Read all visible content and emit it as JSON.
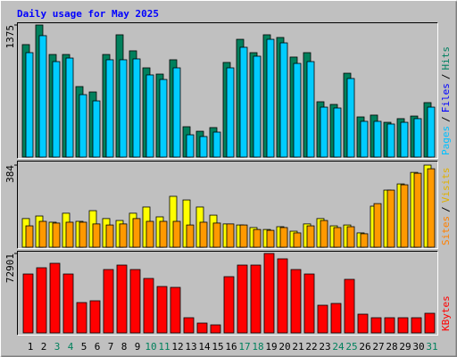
{
  "title": "Daily usage for May 2025",
  "legend_separator": "/",
  "chart_data": [
    {
      "type": "bar",
      "ylim": [
        0,
        1375
      ],
      "yticks": [
        1375
      ],
      "legend": [
        {
          "name": "Pages",
          "color": "#00c0ff"
        },
        {
          "name": "Files",
          "color": "#0000ff"
        },
        {
          "name": "Hits",
          "color": "#008060"
        }
      ],
      "series": [
        {
          "color": "#00805c",
          "values": [
            1171,
            1375,
            1068,
            1068,
            734,
            678,
            1068,
            1273,
            1106,
            929,
            864,
            1013,
            316,
            269,
            307,
            985,
            1226,
            1087,
            1273,
            1245,
            1041,
            1087,
            576,
            548,
            873,
            418,
            437,
            362,
            400,
            427,
            567
          ]
        },
        {
          "color": "#00ccff",
          "values": [
            1087,
            1264,
            994,
            1031,
            650,
            585,
            1013,
            1013,
            1022,
            855,
            808,
            929,
            232,
            214,
            260,
            929,
            1143,
            1050,
            1226,
            1189,
            975,
            994,
            520,
            511,
            818,
            372,
            372,
            344,
            362,
            400,
            520
          ]
        }
      ]
    },
    {
      "type": "bar",
      "ylim": [
        0,
        384
      ],
      "yticks": [
        384
      ],
      "legend": [
        {
          "name": "Sites",
          "color": "#ff8000"
        },
        {
          "name": "Visits",
          "color": "#e0b000"
        }
      ],
      "series": [
        {
          "color": "#ffff00",
          "values": [
            134,
            146,
            117,
            159,
            121,
            171,
            134,
            125,
            159,
            188,
            142,
            238,
            221,
            188,
            150,
            109,
            104,
            92,
            83,
            96,
            75,
            109,
            134,
            100,
            104,
            67,
            192,
            267,
            296,
            350,
            384
          ]
        },
        {
          "color": "#ff9900",
          "values": [
            100,
            121,
            113,
            117,
            117,
            109,
            104,
            109,
            134,
            121,
            121,
            121,
            104,
            117,
            113,
            109,
            104,
            83,
            79,
            92,
            67,
            100,
            125,
            92,
            96,
            63,
            204,
            267,
            292,
            346,
            367
          ]
        }
      ]
    },
    {
      "type": "bar",
      "ylim": [
        0,
        72901
      ],
      "yticks": [
        72901
      ],
      "legend": [
        {
          "name": "KBytes",
          "color": "#ff0000"
        }
      ],
      "series": [
        {
          "color": "#ff0000",
          "values": [
            54060,
            59800,
            63890,
            54060,
            27850,
            29490,
            58160,
            62250,
            58160,
            49970,
            42590,
            41780,
            13930,
            9010,
            7370,
            51610,
            62250,
            62250,
            72901,
            67990,
            58160,
            54060,
            25390,
            27030,
            49150,
            17200,
            13930,
            13930,
            13930,
            13930,
            18020
          ]
        }
      ],
      "categories": [
        "1",
        "2",
        "3",
        "4",
        "5",
        "6",
        "7",
        "8",
        "9",
        "10",
        "11",
        "12",
        "13",
        "14",
        "15",
        "16",
        "17",
        "18",
        "19",
        "20",
        "21",
        "22",
        "23",
        "24",
        "25",
        "26",
        "27",
        "28",
        "29",
        "30",
        "31"
      ],
      "category_colors": [
        "#000000",
        "#000000",
        "#00805c",
        "#00805c",
        "#000000",
        "#000000",
        "#000000",
        "#000000",
        "#000000",
        "#00805c",
        "#00805c",
        "#000000",
        "#000000",
        "#000000",
        "#000000",
        "#000000",
        "#00805c",
        "#00805c",
        "#000000",
        "#000000",
        "#000000",
        "#000000",
        "#000000",
        "#00805c",
        "#00805c",
        "#000000",
        "#000000",
        "#000000",
        "#000000",
        "#000000",
        "#00805c"
      ]
    }
  ]
}
